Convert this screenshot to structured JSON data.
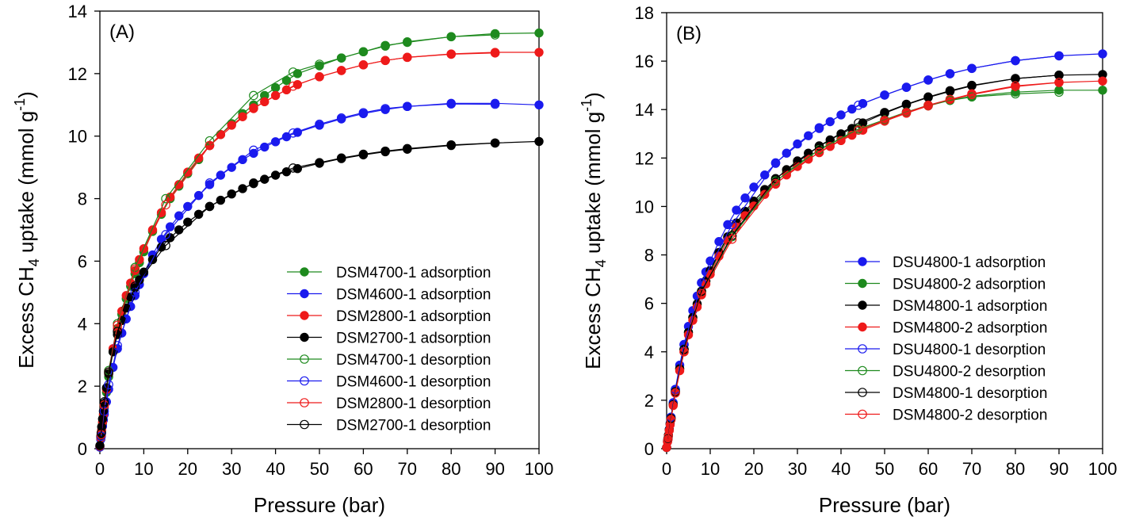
{
  "panels": [
    {
      "panel_label": "(A)",
      "x_axis_label": "Pressure (bar)",
      "y_axis_label": {
        "pre": "Excess CH",
        "sub": "4",
        "mid": " uptake (mmol g",
        "sup": "-1",
        "post": ")"
      }
    },
    {
      "panel_label": "(B)",
      "x_axis_label": "Pressure (bar)",
      "y_axis_label": {
        "pre": "Excess CH",
        "sub": "4",
        "mid": " uptake (mmol g",
        "sup": "-1",
        "post": ")"
      }
    }
  ],
  "chart_data": [
    {
      "type": "line",
      "title": "(A)",
      "xlabel": "Pressure (bar)",
      "ylabel": "Excess CH4 uptake (mmol g-1)",
      "xlim": [
        0,
        100
      ],
      "ylim": [
        0,
        14
      ],
      "xticks": [
        0,
        10,
        20,
        30,
        40,
        50,
        60,
        70,
        80,
        90,
        100
      ],
      "yticks": [
        0,
        2,
        4,
        6,
        8,
        10,
        12,
        14
      ],
      "grid": false,
      "legend_position": "bottom-right",
      "series": [
        {
          "name": "DSM4700-1 adsorption",
          "color": "#1e8a1e",
          "marker": "filled",
          "x": [
            0,
            0.2,
            0.4,
            0.6,
            0.8,
            1,
            1.5,
            2,
            3,
            4,
            5,
            6,
            7,
            8,
            9,
            10,
            12,
            14,
            16,
            18,
            20,
            22.5,
            25,
            27.5,
            30,
            32.5,
            35,
            37.5,
            40,
            42.5,
            45,
            50,
            55,
            60,
            65,
            70,
            80,
            90,
            100
          ],
          "y": [
            0.05,
            0.3,
            0.55,
            0.8,
            1.05,
            1.3,
            1.8,
            2.3,
            3.1,
            3.75,
            4.3,
            4.8,
            5.2,
            5.6,
            5.95,
            6.3,
            6.95,
            7.5,
            8.0,
            8.4,
            8.8,
            9.25,
            9.7,
            10.05,
            10.4,
            10.72,
            11.0,
            11.3,
            11.55,
            11.78,
            12.0,
            12.25,
            12.5,
            12.7,
            12.88,
            13.02,
            13.18,
            13.28,
            13.3
          ]
        },
        {
          "name": "DSM4600-1 adsorption",
          "color": "#1a1aee",
          "marker": "filled",
          "x": [
            0,
            0.2,
            0.4,
            0.6,
            0.8,
            1,
            1.5,
            2,
            3,
            4,
            5,
            6,
            7,
            8,
            9,
            10,
            12,
            14,
            16,
            18,
            20,
            22.5,
            25,
            27.5,
            30,
            32.5,
            35,
            37.5,
            40,
            42.5,
            45,
            50,
            55,
            60,
            65,
            70,
            80,
            90,
            100
          ],
          "y": [
            0.05,
            0.3,
            0.5,
            0.72,
            0.92,
            1.1,
            1.5,
            1.9,
            2.6,
            3.2,
            3.7,
            4.15,
            4.55,
            4.9,
            5.25,
            5.6,
            6.2,
            6.7,
            7.1,
            7.45,
            7.75,
            8.1,
            8.45,
            8.75,
            9.0,
            9.25,
            9.45,
            9.65,
            9.82,
            9.98,
            10.12,
            10.35,
            10.55,
            10.72,
            10.85,
            10.95,
            11.05,
            11.05,
            11.0
          ]
        },
        {
          "name": "DSM2800-1 adsorption",
          "color": "#ee1a1a",
          "marker": "filled",
          "x": [
            0,
            0.2,
            0.4,
            0.6,
            0.8,
            1,
            1.5,
            2,
            3,
            4,
            5,
            6,
            7,
            8,
            9,
            10,
            12,
            14,
            16,
            18,
            20,
            22.5,
            25,
            27.5,
            30,
            32.5,
            35,
            37.5,
            40,
            42.5,
            45,
            50,
            55,
            60,
            65,
            70,
            80,
            90,
            100
          ],
          "y": [
            0.08,
            0.35,
            0.6,
            0.85,
            1.1,
            1.35,
            1.9,
            2.4,
            3.2,
            3.85,
            4.4,
            4.9,
            5.3,
            5.7,
            6.05,
            6.4,
            7.0,
            7.55,
            8.05,
            8.45,
            8.85,
            9.3,
            9.7,
            10.05,
            10.35,
            10.62,
            10.88,
            11.1,
            11.3,
            11.48,
            11.65,
            11.9,
            12.1,
            12.28,
            12.42,
            12.52,
            12.63,
            12.68,
            12.68
          ]
        },
        {
          "name": "DSM2700-1 adsorption",
          "color": "#000000",
          "marker": "filled",
          "x": [
            0,
            0.2,
            0.4,
            0.6,
            0.8,
            1,
            1.5,
            2,
            3,
            4,
            5,
            6,
            7,
            8,
            9,
            10,
            12,
            14,
            16,
            18,
            20,
            22.5,
            25,
            27.5,
            30,
            32.5,
            35,
            37.5,
            40,
            42.5,
            45,
            50,
            55,
            60,
            65,
            70,
            80,
            90,
            100
          ],
          "y": [
            0.1,
            0.4,
            0.7,
            0.95,
            1.2,
            1.45,
            1.95,
            2.4,
            3.1,
            3.65,
            4.1,
            4.5,
            4.85,
            5.15,
            5.4,
            5.65,
            6.05,
            6.45,
            6.75,
            7.0,
            7.25,
            7.5,
            7.75,
            7.95,
            8.15,
            8.32,
            8.48,
            8.62,
            8.75,
            8.86,
            8.96,
            9.13,
            9.28,
            9.4,
            9.5,
            9.58,
            9.7,
            9.78,
            9.83
          ]
        },
        {
          "name": "DSM4700-1 desorption",
          "color": "#1e8a1e",
          "marker": "open",
          "x": [
            90,
            80,
            70,
            65,
            60,
            55,
            50,
            44,
            35,
            25,
            15,
            8,
            4,
            2,
            1,
            0.3
          ],
          "y": [
            13.24,
            13.18,
            13.0,
            12.9,
            12.7,
            12.5,
            12.3,
            12.05,
            11.3,
            9.85,
            8.0,
            5.8,
            4.0,
            2.5,
            1.4,
            0.4
          ]
        },
        {
          "name": "DSM4600-1 desorption",
          "color": "#1a1aee",
          "marker": "open",
          "x": [
            90,
            80,
            70,
            65,
            60,
            55,
            50,
            44,
            35,
            25,
            15,
            8,
            4,
            2,
            1,
            0.3
          ],
          "y": [
            11.02,
            11.03,
            10.95,
            10.88,
            10.75,
            10.58,
            10.38,
            10.1,
            9.55,
            8.5,
            6.85,
            5.0,
            3.3,
            2.05,
            1.2,
            0.4
          ]
        },
        {
          "name": "DSM2800-1 desorption",
          "color": "#ee1a1a",
          "marker": "open",
          "x": [
            90,
            80,
            70,
            65,
            60,
            55,
            50,
            44,
            35,
            25,
            15,
            8,
            4,
            2,
            1,
            0.3
          ],
          "y": [
            12.66,
            12.62,
            12.52,
            12.42,
            12.28,
            12.1,
            11.9,
            11.6,
            10.9,
            9.7,
            7.8,
            5.75,
            3.95,
            2.45,
            1.4,
            0.45
          ]
        },
        {
          "name": "DSM2700-1 desorption",
          "color": "#000000",
          "marker": "open",
          "x": [
            90,
            80,
            70,
            65,
            60,
            55,
            50,
            44,
            35,
            25,
            15,
            8,
            4,
            2,
            1,
            0.3
          ],
          "y": [
            9.78,
            9.72,
            9.6,
            9.52,
            9.42,
            9.3,
            9.15,
            8.98,
            8.5,
            7.75,
            6.5,
            5.2,
            3.75,
            2.45,
            1.5,
            0.5
          ]
        }
      ]
    },
    {
      "type": "line",
      "title": "(B)",
      "xlabel": "Pressure (bar)",
      "ylabel": "Excess CH4 uptake (mmol g-1)",
      "xlim": [
        0,
        100
      ],
      "ylim": [
        0,
        18
      ],
      "xticks": [
        0,
        10,
        20,
        30,
        40,
        50,
        60,
        70,
        80,
        90,
        100
      ],
      "yticks": [
        0,
        2,
        4,
        6,
        8,
        10,
        12,
        14,
        16,
        18
      ],
      "grid": false,
      "legend_position": "right",
      "series": [
        {
          "name": "DSU4800-1 adsorption",
          "color": "#1a1aee",
          "marker": "filled",
          "x": [
            0,
            0.2,
            0.4,
            0.6,
            0.8,
            1,
            1.5,
            2,
            3,
            4,
            5,
            6,
            7,
            8,
            9,
            10,
            12,
            14,
            16,
            18,
            20,
            22.5,
            25,
            27.5,
            30,
            32.5,
            35,
            37.5,
            40,
            42.5,
            45,
            50,
            55,
            60,
            65,
            70,
            80,
            90,
            100
          ],
          "y": [
            0.05,
            0.3,
            0.55,
            0.8,
            1.05,
            1.3,
            1.9,
            2.45,
            3.45,
            4.3,
            5.05,
            5.7,
            6.3,
            6.85,
            7.3,
            7.75,
            8.55,
            9.25,
            9.85,
            10.35,
            10.8,
            11.3,
            11.78,
            12.2,
            12.58,
            12.92,
            13.22,
            13.5,
            13.78,
            14.02,
            14.25,
            14.6,
            14.92,
            15.22,
            15.48,
            15.7,
            16.02,
            16.22,
            16.3
          ]
        },
        {
          "name": "DSU4800-2 adsorption",
          "color": "#1e8a1e",
          "marker": "filled",
          "x": [
            0,
            0.2,
            0.4,
            0.6,
            0.8,
            1,
            1.5,
            2,
            3,
            4,
            5,
            6,
            7,
            8,
            9,
            10,
            12,
            14,
            16,
            18,
            20,
            22.5,
            25,
            27.5,
            30,
            32.5,
            35,
            37.5,
            40,
            42.5,
            45,
            50,
            55,
            60,
            65,
            70,
            80,
            90,
            100
          ],
          "y": [
            0.05,
            0.3,
            0.55,
            0.78,
            1.02,
            1.25,
            1.82,
            2.35,
            3.3,
            4.1,
            4.8,
            5.4,
            5.95,
            6.45,
            6.9,
            7.3,
            8.05,
            8.7,
            9.25,
            9.72,
            10.12,
            10.6,
            11.02,
            11.4,
            11.75,
            12.05,
            12.32,
            12.58,
            12.8,
            13.0,
            13.2,
            13.55,
            13.88,
            14.15,
            14.38,
            14.55,
            14.72,
            14.8,
            14.8
          ]
        },
        {
          "name": "DSM4800-1 adsorption",
          "color": "#000000",
          "marker": "filled",
          "x": [
            0,
            0.2,
            0.4,
            0.6,
            0.8,
            1,
            1.5,
            2,
            3,
            4,
            5,
            6,
            7,
            8,
            9,
            10,
            12,
            14,
            16,
            18,
            20,
            22.5,
            25,
            27.5,
            30,
            32.5,
            35,
            37.5,
            40,
            42.5,
            45,
            50,
            55,
            60,
            65,
            70,
            80,
            90,
            100
          ],
          "y": [
            0.05,
            0.3,
            0.55,
            0.78,
            1.02,
            1.25,
            1.82,
            2.35,
            3.3,
            4.1,
            4.8,
            5.42,
            5.98,
            6.48,
            6.93,
            7.35,
            8.1,
            8.75,
            9.32,
            9.8,
            10.22,
            10.7,
            11.12,
            11.52,
            11.88,
            12.2,
            12.48,
            12.75,
            13.0,
            13.22,
            13.45,
            13.85,
            14.2,
            14.5,
            14.75,
            14.98,
            15.28,
            15.42,
            15.45
          ]
        },
        {
          "name": "DSM4800-2 adsorption",
          "color": "#ee1a1a",
          "marker": "filled",
          "x": [
            0,
            0.2,
            0.4,
            0.6,
            0.8,
            1,
            1.5,
            2,
            3,
            4,
            5,
            6,
            7,
            8,
            9,
            10,
            12,
            14,
            16,
            18,
            20,
            22.5,
            25,
            27.5,
            30,
            32.5,
            35,
            37.5,
            40,
            42.5,
            45,
            50,
            55,
            60,
            65,
            70,
            80,
            90,
            100
          ],
          "y": [
            0.05,
            0.28,
            0.52,
            0.75,
            0.98,
            1.2,
            1.78,
            2.3,
            3.22,
            4.0,
            4.7,
            5.3,
            5.85,
            6.35,
            6.8,
            7.2,
            7.95,
            8.6,
            9.15,
            9.62,
            10.02,
            10.5,
            10.92,
            11.3,
            11.65,
            11.95,
            12.22,
            12.48,
            12.72,
            12.94,
            13.15,
            13.52,
            13.85,
            14.15,
            14.4,
            14.62,
            14.95,
            15.12,
            15.18
          ]
        },
        {
          "name": "DSU4800-1 desorption",
          "color": "#1a1aee",
          "marker": "open",
          "x": [
            90,
            80,
            70,
            65,
            60,
            55,
            50,
            44,
            35,
            25,
            15,
            8,
            4,
            2,
            1,
            0.3
          ],
          "y": [
            16.22,
            16.02,
            15.7,
            15.48,
            15.22,
            14.92,
            14.6,
            14.18,
            13.25,
            11.8,
            9.25,
            6.85,
            4.3,
            2.45,
            1.3,
            0.4
          ]
        },
        {
          "name": "DSU4800-2 desorption",
          "color": "#1e8a1e",
          "marker": "open",
          "x": [
            90,
            80,
            70,
            65,
            60,
            55,
            50,
            44,
            35,
            25,
            15,
            8,
            4,
            2,
            1,
            0.3
          ],
          "y": [
            14.72,
            14.65,
            14.52,
            14.38,
            14.18,
            13.9,
            13.58,
            13.2,
            12.35,
            11.05,
            8.75,
            6.5,
            4.1,
            2.35,
            1.25,
            0.4
          ]
        },
        {
          "name": "DSM4800-1 desorption",
          "color": "#000000",
          "marker": "open",
          "x": [
            90,
            80,
            70,
            65,
            60,
            55,
            50,
            44,
            35,
            25,
            15,
            8,
            4,
            2,
            1,
            0.3
          ],
          "y": [
            15.42,
            15.28,
            15.0,
            14.78,
            14.52,
            14.22,
            13.88,
            13.45,
            12.5,
            11.15,
            8.8,
            6.5,
            4.1,
            2.35,
            1.25,
            0.4
          ]
        },
        {
          "name": "DSM4800-2 desorption",
          "color": "#ee1a1a",
          "marker": "open",
          "x": [
            90,
            80,
            70,
            65,
            60,
            55,
            50,
            44,
            35,
            25,
            15,
            8,
            4,
            2,
            1,
            0.3
          ],
          "y": [
            15.12,
            14.98,
            14.65,
            14.42,
            14.18,
            13.88,
            13.55,
            13.15,
            12.25,
            10.95,
            8.65,
            6.4,
            4.0,
            2.3,
            1.2,
            0.38
          ]
        }
      ]
    }
  ]
}
